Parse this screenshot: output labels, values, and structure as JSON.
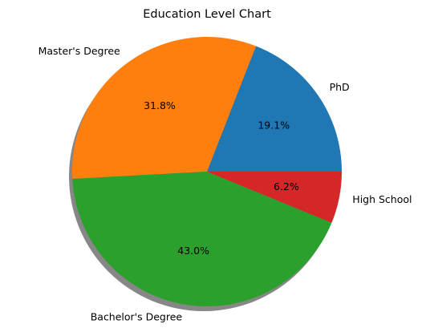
{
  "chart_data": {
    "type": "pie",
    "title": "Education Level Chart",
    "shadow": true,
    "start_angle": 0,
    "direction": "counterclockwise",
    "slices": [
      {
        "label": "PhD",
        "value": 19.1,
        "pct_text": "19.1%",
        "color": "#1f77b4"
      },
      {
        "label": "Master's Degree",
        "value": 31.8,
        "pct_text": "31.8%",
        "color": "#ff7f0e"
      },
      {
        "label": "Bachelor's Degree",
        "value": 43.0,
        "pct_text": "43.0%",
        "color": "#2ca02c"
      },
      {
        "label": "High School",
        "value": 6.2,
        "pct_text": "6.2%",
        "color": "#d62728"
      }
    ]
  }
}
